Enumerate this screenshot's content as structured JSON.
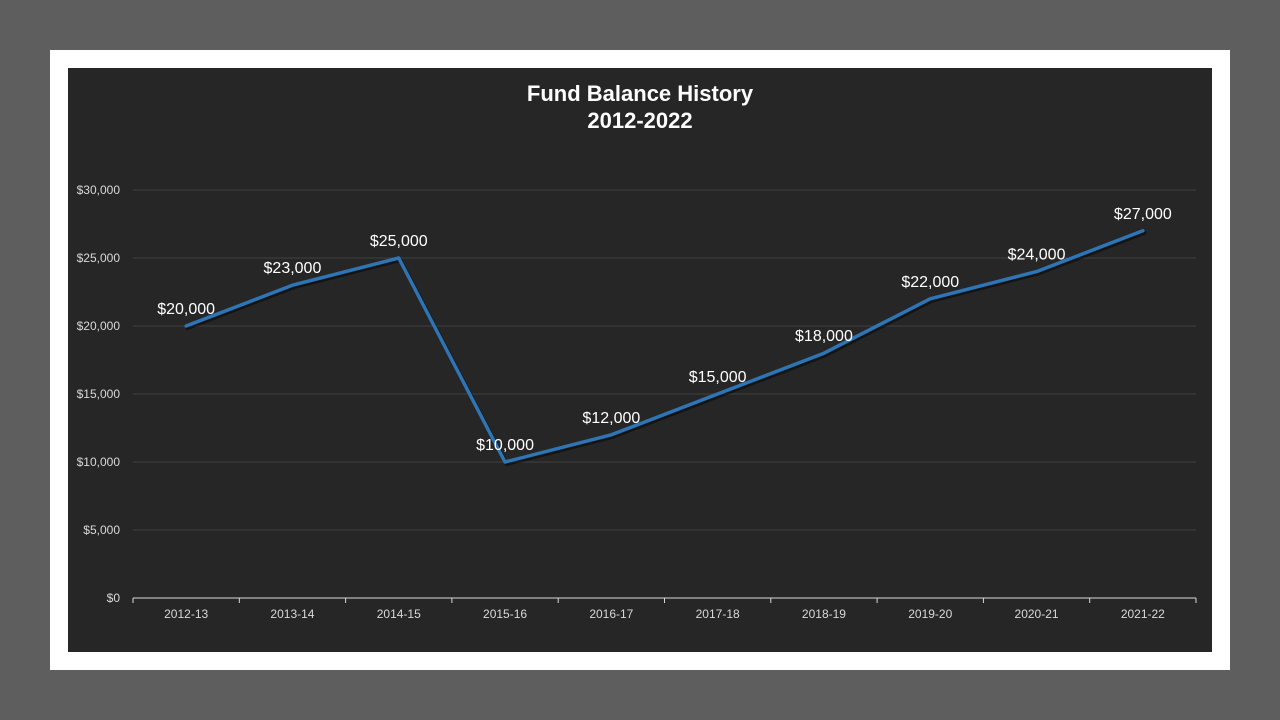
{
  "chart_data": {
    "type": "line",
    "title": "Fund Balance History",
    "subtitle": "2012-2022",
    "categories": [
      "2012-13",
      "2013-14",
      "2014-15",
      "2015-16",
      "2016-17",
      "2017-18",
      "2018-19",
      "2019-20",
      "2020-21",
      "2021-22"
    ],
    "series": [
      {
        "values": [
          20000,
          23000,
          25000,
          10000,
          12000,
          15000,
          18000,
          22000,
          24000,
          27000
        ]
      }
    ],
    "data_labels": [
      "$20,000",
      "$23,000",
      "$25,000",
      "$10,000",
      "$12,000",
      "$15,000",
      "$18,000",
      "$22,000",
      "$24,000",
      "$27,000"
    ],
    "y_ticks": [
      0,
      5000,
      10000,
      15000,
      20000,
      25000,
      30000
    ],
    "y_tick_labels": [
      "$0",
      "$5,000",
      "$10,000",
      "$15,000",
      "$20,000",
      "$25,000",
      "$30,000"
    ],
    "ylim": [
      0,
      30000
    ],
    "grid": true,
    "legend": "none",
    "colors": {
      "line": "#2e75b6",
      "background": "#262626",
      "grid": "#404040",
      "text": "#ffffff"
    }
  }
}
